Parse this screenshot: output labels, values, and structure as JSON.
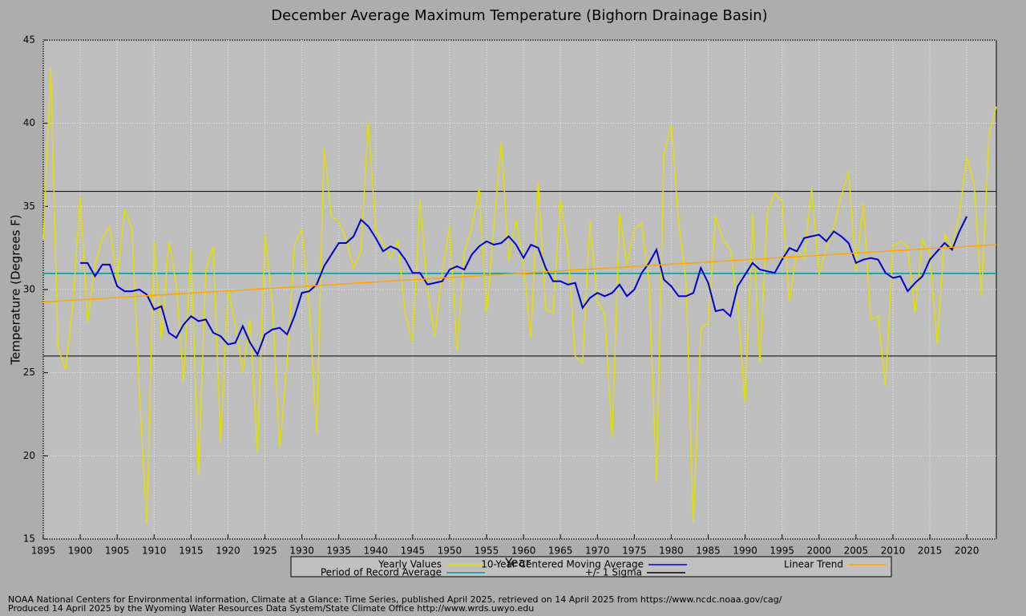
{
  "chart_data": {
    "type": "line",
    "title": "December Average Maximum Temperature (Bighorn Drainage Basin)",
    "x_label": "Year",
    "y_label": "Temperature (Degrees F)",
    "xlim": [
      1895,
      2024
    ],
    "ylim": [
      15,
      45
    ],
    "xticks": [
      1895,
      1900,
      1905,
      1910,
      1915,
      1920,
      1925,
      1930,
      1935,
      1940,
      1945,
      1950,
      1955,
      1960,
      1965,
      1970,
      1975,
      1980,
      1985,
      1990,
      1995,
      2000,
      2005,
      2010,
      2015,
      2020
    ],
    "yticks": [
      15,
      20,
      25,
      30,
      35,
      40,
      45
    ],
    "grid": true,
    "series": [
      {
        "name": "Yearly Values",
        "color": "#e0e000",
        "x": [
          1895,
          1896,
          1897,
          1898,
          1899,
          1900,
          1901,
          1902,
          1903,
          1904,
          1905,
          1906,
          1907,
          1908,
          1909,
          1910,
          1911,
          1912,
          1913,
          1914,
          1915,
          1916,
          1917,
          1918,
          1919,
          1920,
          1921,
          1922,
          1923,
          1924,
          1925,
          1926,
          1927,
          1928,
          1929,
          1930,
          1931,
          1932,
          1933,
          1934,
          1935,
          1936,
          1937,
          1938,
          1939,
          1940,
          1941,
          1942,
          1943,
          1944,
          1945,
          1946,
          1947,
          1948,
          1949,
          1950,
          1951,
          1952,
          1953,
          1954,
          1955,
          1956,
          1957,
          1958,
          1959,
          1960,
          1961,
          1962,
          1963,
          1964,
          1965,
          1966,
          1967,
          1968,
          1969,
          1970,
          1971,
          1972,
          1973,
          1974,
          1975,
          1976,
          1977,
          1978,
          1979,
          1980,
          1981,
          1982,
          1983,
          1984,
          1985,
          1986,
          1987,
          1988,
          1989,
          1990,
          1991,
          1992,
          1993,
          1994,
          1995,
          1996,
          1997,
          1998,
          1999,
          2000,
          2001,
          2002,
          2003,
          2004,
          2005,
          2006,
          2007,
          2008,
          2009,
          2010,
          2011,
          2012,
          2013,
          2014,
          2015,
          2016,
          2017,
          2018,
          2019,
          2020,
          2021,
          2022,
          2023,
          2024
        ],
        "values": [
          33,
          43.3,
          26.5,
          25.2,
          29,
          35.6,
          28,
          31.5,
          33.1,
          33.8,
          30.5,
          34.8,
          33.7,
          24,
          15.9,
          32.9,
          27,
          32.9,
          30.3,
          24.5,
          32.4,
          18.8,
          31.2,
          32.6,
          20.8,
          30,
          27.9,
          25,
          28.2,
          20.2,
          33.3,
          29.2,
          20.5,
          25.5,
          32.7,
          33.6,
          29,
          21.4,
          38.5,
          34.4,
          34.1,
          33,
          31.3,
          32.3,
          40.1,
          33.5,
          32.8,
          31.9,
          32.9,
          28.5,
          26.8,
          35.4,
          30,
          27.2,
          31,
          33.8,
          26.3,
          32.3,
          33.7,
          36.1,
          28.6,
          33.8,
          38.9,
          31.7,
          34.2,
          31.5,
          27.1,
          36.5,
          28.8,
          28.6,
          35.4,
          32.4,
          26,
          25.6,
          34.1,
          29.3,
          28.5,
          21.1,
          34.6,
          31.5,
          33.6,
          34,
          30.4,
          18.5,
          38.2,
          39.9,
          34,
          30.5,
          16,
          27.6,
          28,
          34.4,
          33,
          32.4,
          29.1,
          23.1,
          34.5,
          25.6,
          34.6,
          35.8,
          35.3,
          29.3,
          32.4,
          31.8,
          36.1,
          30.9,
          32.5,
          33.7,
          35.6,
          37.1,
          31.1,
          35.2,
          28.2,
          28.4,
          24.2,
          32.6,
          32.9,
          32.6,
          28.6,
          33,
          32.2,
          26.7,
          33.3,
          32.5,
          34.5,
          38,
          36.3,
          29.6,
          39.3,
          41
        ]
      },
      {
        "name": "10-Year Centered Moving Average",
        "color": "#0000cc",
        "x": [
          1900,
          1901,
          1902,
          1903,
          1904,
          1905,
          1906,
          1907,
          1908,
          1909,
          1910,
          1911,
          1912,
          1913,
          1914,
          1915,
          1916,
          1917,
          1918,
          1919,
          1920,
          1921,
          1922,
          1923,
          1924,
          1925,
          1926,
          1927,
          1928,
          1929,
          1930,
          1931,
          1932,
          1933,
          1934,
          1935,
          1936,
          1937,
          1938,
          1939,
          1940,
          1941,
          1942,
          1943,
          1944,
          1945,
          1946,
          1947,
          1948,
          1949,
          1950,
          1951,
          1952,
          1953,
          1954,
          1955,
          1956,
          1957,
          1958,
          1959,
          1960,
          1961,
          1962,
          1963,
          1964,
          1965,
          1966,
          1967,
          1968,
          1969,
          1970,
          1971,
          1972,
          1973,
          1974,
          1975,
          1976,
          1977,
          1978,
          1979,
          1980,
          1981,
          1982,
          1983,
          1984,
          1985,
          1986,
          1987,
          1988,
          1989,
          1990,
          1991,
          1992,
          1993,
          1994,
          1995,
          1996,
          1997,
          1998,
          1999,
          2000,
          2001,
          2002,
          2003,
          2004,
          2005,
          2006,
          2007,
          2008,
          2009,
          2010,
          2011,
          2012,
          2013,
          2014,
          2015,
          2016,
          2017,
          2018,
          2019,
          2020
        ],
        "values": [
          31.6,
          31.6,
          30.8,
          31.5,
          31.5,
          30.2,
          29.9,
          29.9,
          30,
          29.7,
          28.8,
          29,
          27.4,
          27.1,
          27.9,
          28.4,
          28.1,
          28.2,
          27.4,
          27.2,
          26.7,
          26.8,
          27.8,
          26.8,
          26.1,
          27.3,
          27.6,
          27.7,
          27.3,
          28.4,
          29.8,
          29.9,
          30.3,
          31.4,
          32.1,
          32.8,
          32.8,
          33.2,
          34.2,
          33.8,
          33.1,
          32.3,
          32.6,
          32.4,
          31.8,
          31,
          31,
          30.3,
          30.4,
          30.5,
          31.2,
          31.4,
          31.2,
          32.1,
          32.6,
          32.9,
          32.7,
          32.8,
          33.2,
          32.7,
          31.9,
          32.7,
          32.5,
          31.3,
          30.5,
          30.5,
          30.3,
          30.4,
          28.9,
          29.5,
          29.8,
          29.6,
          29.8,
          30.3,
          29.6,
          30,
          31,
          31.6,
          32.4,
          30.6,
          30.2,
          29.6,
          29.6,
          29.8,
          31.3,
          30.4,
          28.7,
          28.8,
          28.4,
          30.2,
          30.9,
          31.6,
          31.2,
          31.1,
          31,
          31.8,
          32.5,
          32.3,
          33.1,
          33.2,
          33.3,
          32.9,
          33.5,
          33.2,
          32.8,
          31.6,
          31.8,
          31.9,
          31.8,
          31,
          30.7,
          30.8,
          29.9,
          30.4,
          30.8,
          31.8,
          32.3,
          32.8,
          32.4,
          33.5,
          34.4
        ]
      },
      {
        "name": "Linear Trend",
        "color": "#ffa500",
        "x": [
          1895,
          2024
        ],
        "values": [
          29.25,
          32.7
        ]
      }
    ],
    "average": {
      "name": "Period of Record Average",
      "color": "#009999",
      "value": 30.97
    },
    "sigma": {
      "name": "+/- 1 Sigma",
      "color": "#000000",
      "values": [
        26.0,
        35.9
      ]
    },
    "footer": [
      "NOAA National Centers for Environmental information, Climate at a Glance: Time Series, published April 2025, retrieved on 14 April 2025 from https://www.ncdc.noaa.gov/cag/",
      "Produced 14 April 2025 by the Wyoming Water Resources Data System/State Climate Office http://www.wrds.uwyo.edu"
    ]
  }
}
